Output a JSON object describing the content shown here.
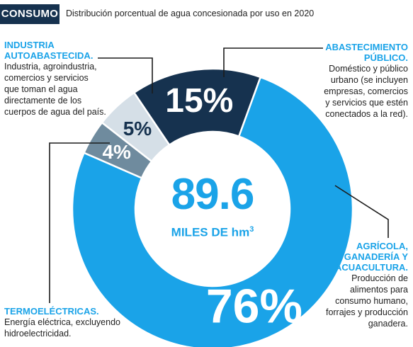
{
  "header": {
    "badge": "CONSUMO",
    "title": "Distribución porcentual de agua concesionada por uso en 2020"
  },
  "center": {
    "value": "89.6",
    "unit": "MILES DE hm",
    "unit_superscript": "3"
  },
  "annotations": {
    "industria": {
      "title_line1": "INDUSTRIA",
      "title_line2": "AUTOABASTECIDA.",
      "desc": [
        "Industria, agroindustria,",
        "comercios y servicios",
        "que toman el agua",
        "directamente de los",
        "cuerpos de agua del país."
      ]
    },
    "abastecimiento": {
      "title_line1": "ABASTECIMIENTO",
      "title_line2": "PÚBLICO.",
      "desc": [
        "Doméstico y público",
        "urbano (se incluyen",
        "empresas, comercios",
        "y servicios que estén",
        "conectados a la red)."
      ]
    },
    "agricola": {
      "title_line1": "AGRÍCOLA,",
      "title_line2": "GANADERÍA Y",
      "title_line3": "ACUACULTURA.",
      "desc": [
        "Producción de",
        "alimentos para",
        "consumo humano,",
        "forrajes y producción",
        "ganadera."
      ]
    },
    "termo": {
      "title_line1": "TERMOELÉCTRICAS.",
      "desc": [
        "Energía eléctrica, excluyendo",
        "hidroelectricidad."
      ]
    }
  },
  "chart_data": {
    "type": "pie",
    "subtype": "donut",
    "title": "Distribución porcentual de agua concesionada por uso en 2020",
    "total_label": "89.6 MILES DE hm3",
    "slices": [
      {
        "name": "ABASTECIMIENTO PÚBLICO",
        "value": 15,
        "label": "15%",
        "color": "#16324f"
      },
      {
        "name": "AGRÍCOLA, GANADERÍA Y ACUACULTURA",
        "value": 76,
        "label": "76%",
        "color": "#1aa3e8"
      },
      {
        "name": "TERMOELÉCTRICAS",
        "value": 4,
        "label": "4%",
        "color": "#6f8b9e"
      },
      {
        "name": "INDUSTRIA AUTOABASTECIDA",
        "value": 5,
        "label": "5%",
        "color": "#d5dfe7"
      }
    ]
  },
  "colors": {
    "accent": "#1aa3e8",
    "dark": "#16324f",
    "grey": "#6f8b9e",
    "light": "#d5dfe7"
  }
}
